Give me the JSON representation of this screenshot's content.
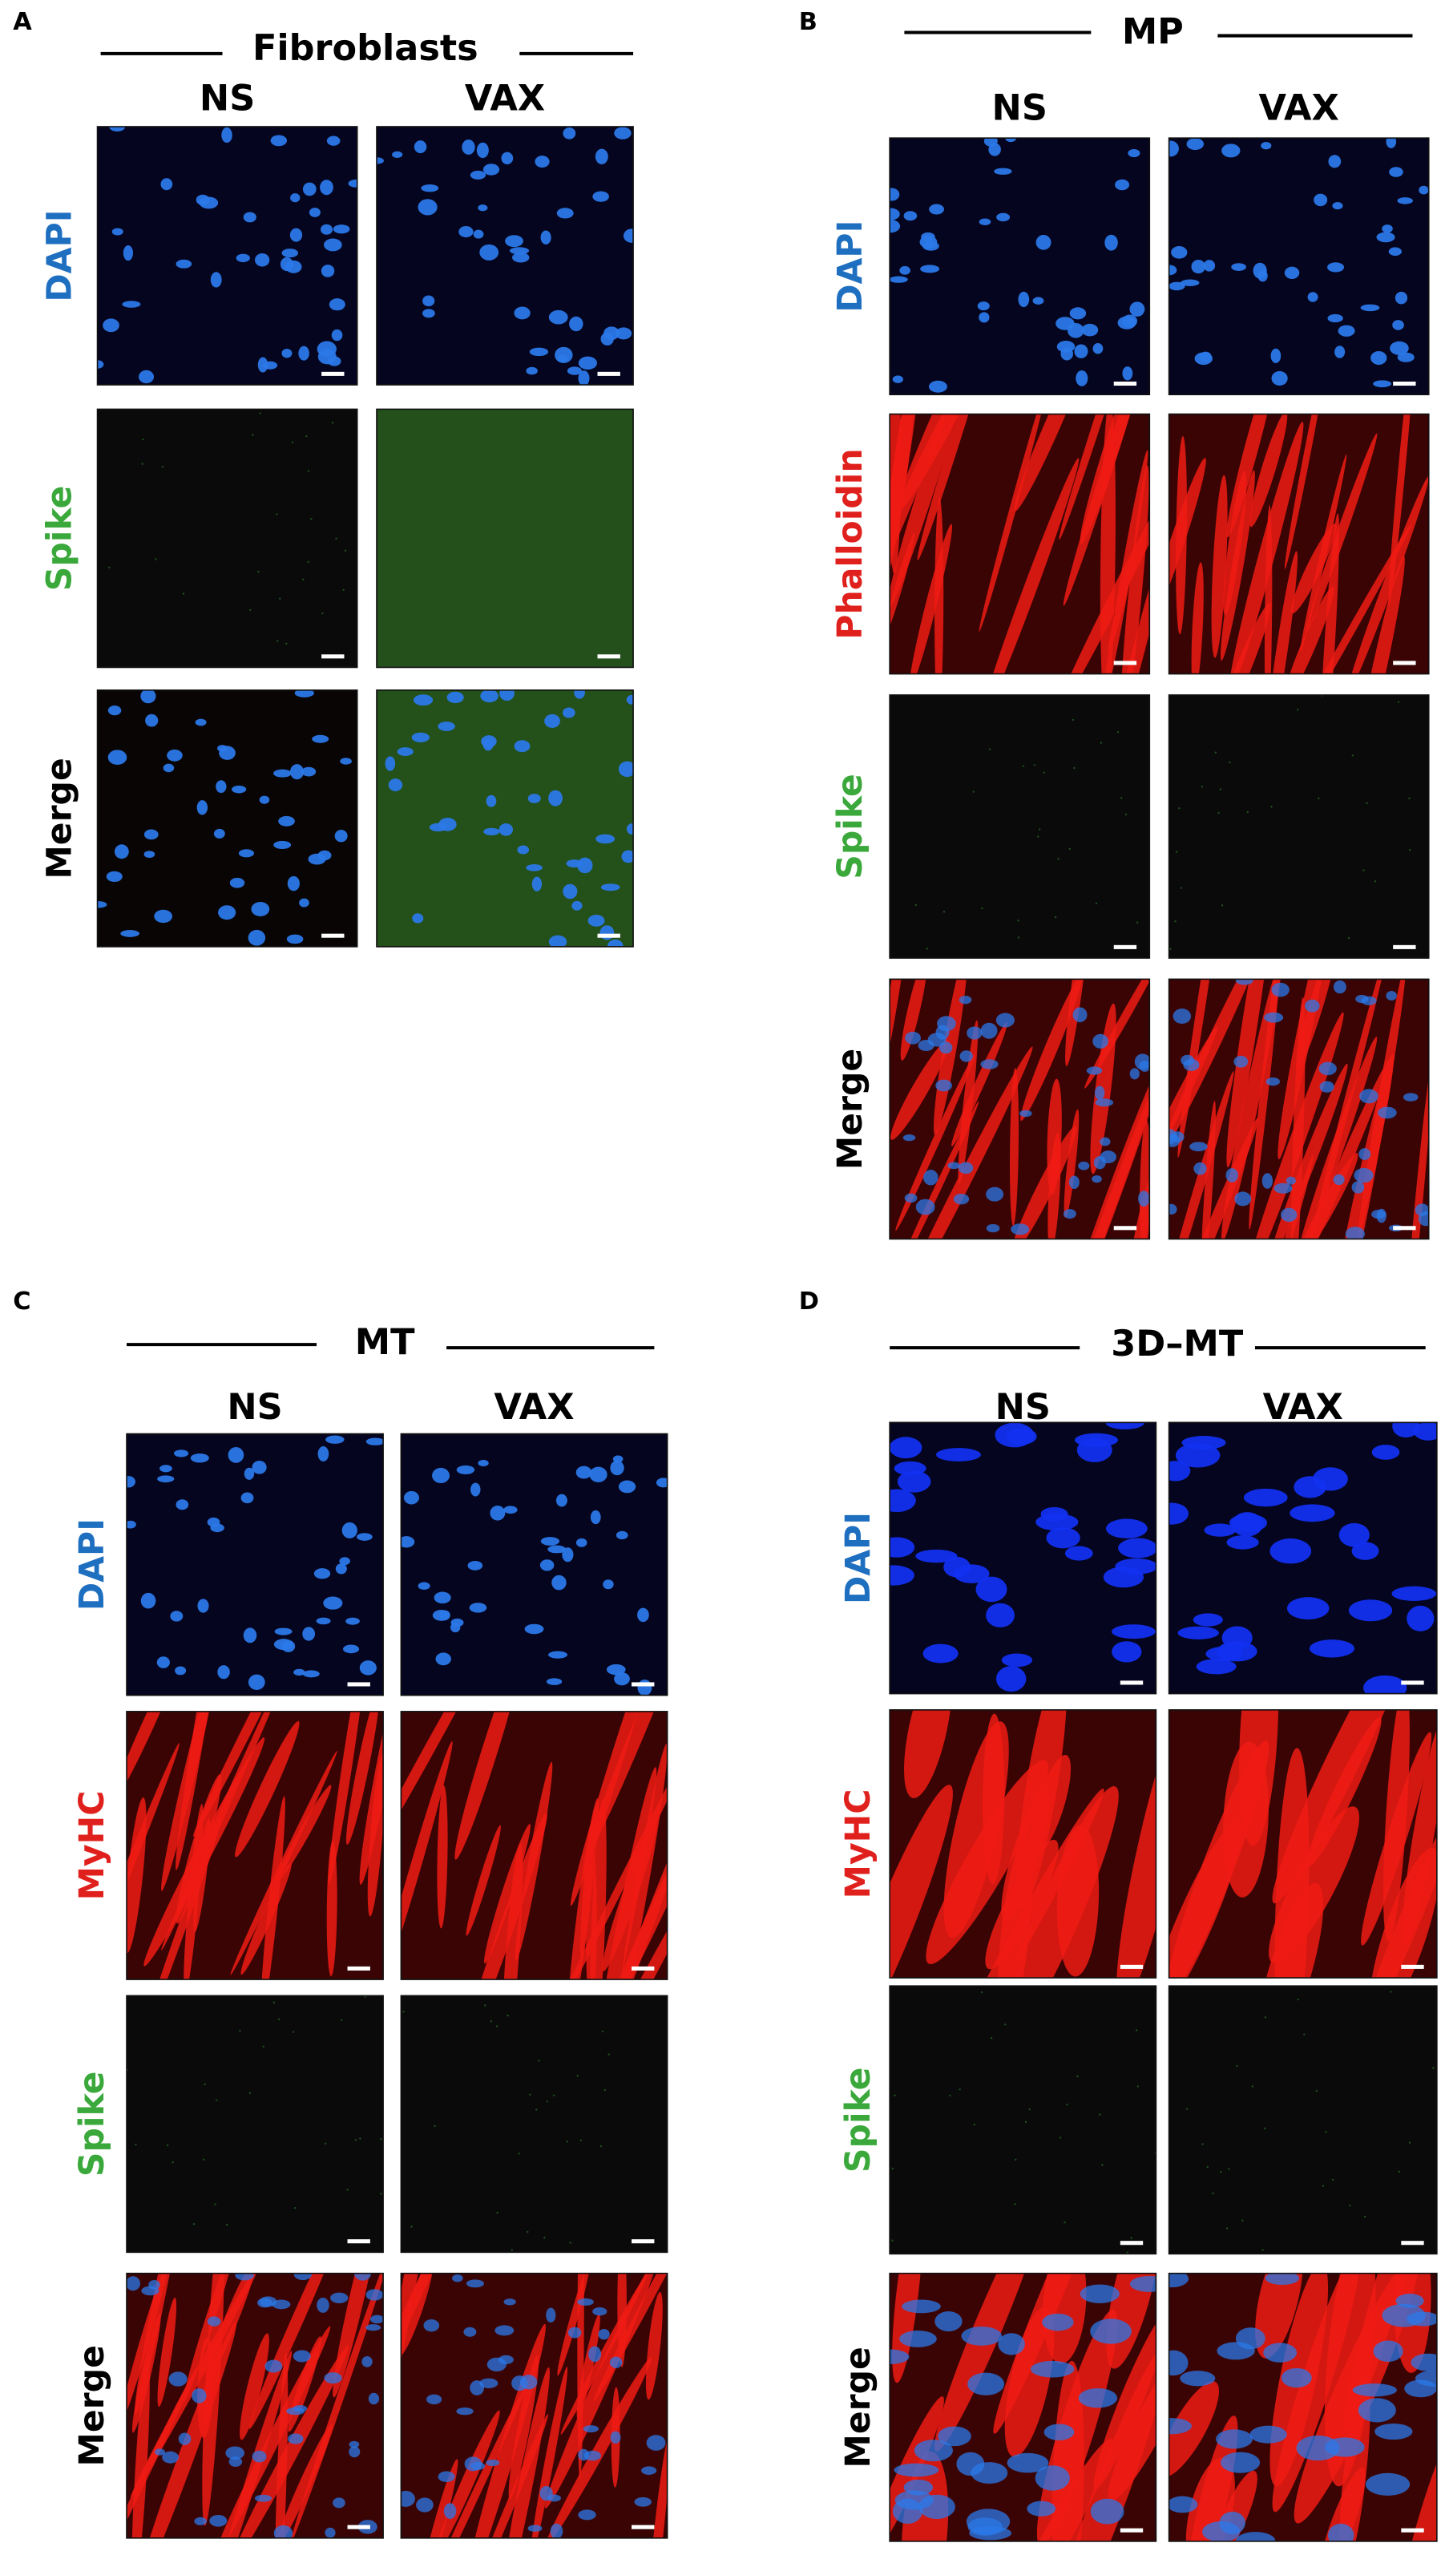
{
  "panels": [
    {
      "letter": "A",
      "title": "Fibroblasts",
      "columns": [
        "NS",
        "VAX"
      ],
      "rows": [
        {
          "label": "DAPI",
          "color": "#1f6fc0"
        },
        {
          "label": "Spike",
          "color": "#3aa83a"
        },
        {
          "label": "Merge",
          "color": "#000000"
        }
      ]
    },
    {
      "letter": "B",
      "title": "MP",
      "columns": [
        "NS",
        "VAX"
      ],
      "rows": [
        {
          "label": "DAPI",
          "color": "#1f6fc0"
        },
        {
          "label": "Phalloidin",
          "color": "#e0201c"
        },
        {
          "label": "Spike",
          "color": "#3aa83a"
        },
        {
          "label": "Merge",
          "color": "#000000"
        }
      ]
    },
    {
      "letter": "C",
      "title": "MT",
      "columns": [
        "NS",
        "VAX"
      ],
      "rows": [
        {
          "label": "DAPI",
          "color": "#1f6fc0"
        },
        {
          "label": "MyHC",
          "color": "#e0201c"
        },
        {
          "label": "Spike",
          "color": "#3aa83a"
        },
        {
          "label": "Merge",
          "color": "#000000"
        }
      ]
    },
    {
      "letter": "D",
      "title": "3D–MT",
      "columns": [
        "NS",
        "VAX"
      ],
      "rows": [
        {
          "label": "DAPI",
          "color": "#1f6fc0"
        },
        {
          "label": "MyHC",
          "color": "#e0201c"
        },
        {
          "label": "Spike",
          "color": "#3aa83a"
        },
        {
          "label": "Merge",
          "color": "#000000"
        }
      ]
    }
  ]
}
